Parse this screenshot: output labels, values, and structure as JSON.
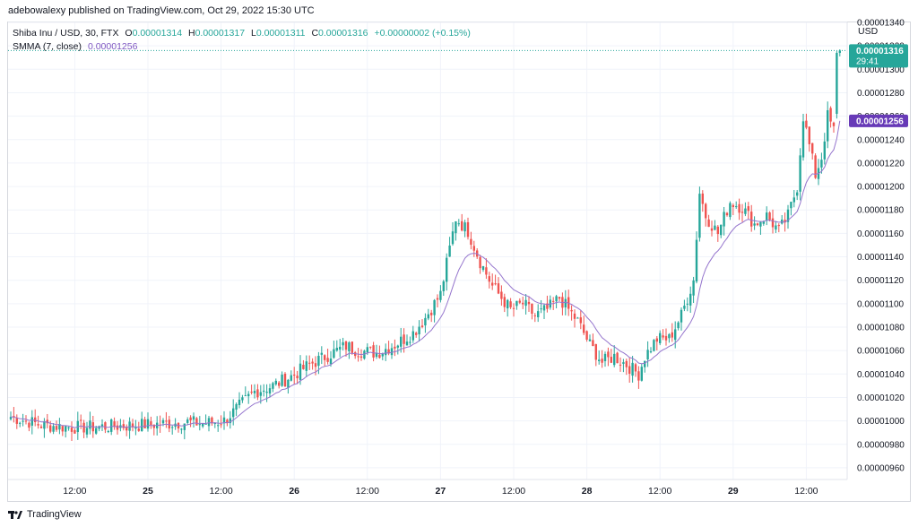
{
  "header": {
    "publish_line": "adebowalexy published on TradingView.com, Oct 29, 2022 15:30 UTC"
  },
  "legend": {
    "symbol": "Shiba Inu / USD, 30, FTX",
    "o_label": "O",
    "o_value": "0.00001314",
    "h_label": "H",
    "h_value": "0.00001317",
    "l_label": "L",
    "l_value": "0.00001311",
    "c_label": "C",
    "c_value": "0.00001316",
    "change": "+0.00000002 (+0.15%)",
    "ma_label": "SMMA (7, close)",
    "ma_value": "0.00001256"
  },
  "axis": {
    "currency": "USD"
  },
  "footer": {
    "brand": "TradingView",
    "logo_icon": "tradingview-logo-icon"
  },
  "colors": {
    "up": "#26a69a",
    "down": "#ef5350",
    "ma": "#9575cd",
    "ma_tag": "#673ab7",
    "grid": "#f0f3fa"
  },
  "chart_data": {
    "type": "candlestick",
    "symbol": "Shiba Inu / USD, 30, FTX",
    "interval_minutes": 30,
    "ylim": [
      9.5e-06,
      1.34e-05
    ],
    "y_ticks": [
      "0.00001340",
      "0.00001320",
      "0.00001300",
      "0.00001280",
      "0.00001260",
      "0.00001240",
      "0.00001220",
      "0.00001200",
      "0.00001180",
      "0.00001160",
      "0.00001140",
      "0.00001120",
      "0.00001100",
      "0.00001080",
      "0.00001060",
      "0.00001040",
      "0.00001020",
      "0.00001000",
      "0.00000980",
      "0.00000960"
    ],
    "x_ticks": [
      {
        "label": "12:00",
        "bar": 21,
        "bold": false
      },
      {
        "label": "25",
        "bar": 45,
        "bold": true
      },
      {
        "label": "12:00",
        "bar": 69,
        "bold": false
      },
      {
        "label": "26",
        "bar": 93,
        "bold": true
      },
      {
        "label": "12:00",
        "bar": 117,
        "bold": false
      },
      {
        "label": "27",
        "bar": 141,
        "bold": true
      },
      {
        "label": "12:00",
        "bar": 165,
        "bold": false
      },
      {
        "label": "28",
        "bar": 189,
        "bold": true
      },
      {
        "label": "12:00",
        "bar": 213,
        "bold": false
      },
      {
        "label": "29",
        "bar": 237,
        "bold": true
      },
      {
        "label": "12:00",
        "bar": 261,
        "bold": false
      }
    ],
    "price_anchors": [
      [
        0,
        1.0035
      ],
      [
        10,
        0.9965
      ],
      [
        20,
        0.9945
      ],
      [
        30,
        0.995
      ],
      [
        42,
        0.9965
      ],
      [
        50,
        0.9975
      ],
      [
        58,
        0.999
      ],
      [
        62,
        0.998
      ],
      [
        66,
        0.9985
      ],
      [
        70,
        1.0
      ],
      [
        76,
        1.015
      ],
      [
        80,
        1.025
      ],
      [
        86,
        1.03
      ],
      [
        92,
        1.038
      ],
      [
        98,
        1.048
      ],
      [
        104,
        1.056
      ],
      [
        110,
        1.064
      ],
      [
        114,
        1.06
      ],
      [
        120,
        1.058
      ],
      [
        126,
        1.065
      ],
      [
        132,
        1.075
      ],
      [
        136,
        1.088
      ],
      [
        141,
        1.108
      ],
      [
        146,
        1.173
      ],
      [
        150,
        1.162
      ],
      [
        154,
        1.136
      ],
      [
        158,
        1.115
      ],
      [
        164,
        1.095
      ],
      [
        168,
        1.1
      ],
      [
        172,
        1.09
      ],
      [
        176,
        1.095
      ],
      [
        180,
        1.105
      ],
      [
        186,
        1.085
      ],
      [
        190,
        1.065
      ],
      [
        194,
        1.05
      ],
      [
        198,
        1.055
      ],
      [
        202,
        1.048
      ],
      [
        206,
        1.04
      ],
      [
        208,
        1.055
      ],
      [
        212,
        1.07
      ],
      [
        216,
        1.07
      ],
      [
        220,
        1.09
      ],
      [
        224,
        1.12
      ],
      [
        226,
        1.195
      ],
      [
        228,
        1.175
      ],
      [
        232,
        1.16
      ],
      [
        236,
        1.187
      ],
      [
        240,
        1.182
      ],
      [
        244,
        1.168
      ],
      [
        248,
        1.175
      ],
      [
        252,
        1.162
      ],
      [
        255,
        1.175
      ],
      [
        258,
        1.2
      ],
      [
        260,
        1.26
      ],
      [
        262,
        1.235
      ],
      [
        264,
        1.21
      ],
      [
        266,
        1.225
      ],
      [
        268,
        1.26
      ],
      [
        270,
        1.248
      ],
      [
        271,
        1.295
      ],
      [
        272,
        1.316
      ]
    ],
    "last_bar": {
      "open": 1.314e-05,
      "high": 1.317e-05,
      "low": 1.311e-05,
      "close": 1.316e-05
    },
    "smma": {
      "period": 7,
      "last": 1.256e-05
    },
    "price_tag": {
      "price": "0.00001316",
      "countdown": "29:41"
    },
    "ma_tag": {
      "price": "0.00001256"
    }
  }
}
